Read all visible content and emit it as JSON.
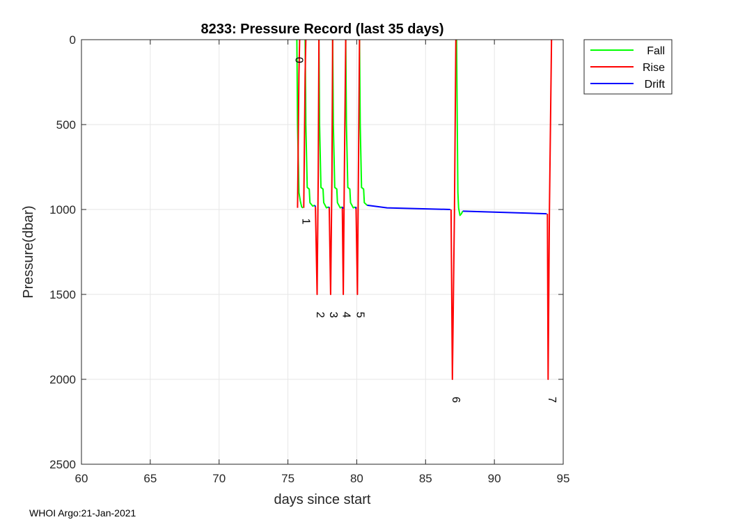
{
  "chart_data": {
    "type": "line",
    "title": "8233: Pressure Record (last 35 days)",
    "xlabel": "days since start",
    "ylabel": "Pressure(dbar)",
    "xlim": [
      60,
      95
    ],
    "ylim": [
      0,
      2500
    ],
    "y_reversed": true,
    "x_ticks": [
      60,
      65,
      70,
      75,
      80,
      85,
      90,
      95
    ],
    "y_ticks": [
      0,
      500,
      1000,
      1500,
      2000,
      2500
    ],
    "grid": true,
    "legend_position": "outside-top-right",
    "series": [
      {
        "name": "Fall",
        "color": "#00ff00",
        "segments": [
          [
            [
              75.65,
              0
            ],
            [
              75.7,
              500
            ],
            [
              75.8,
              900
            ],
            [
              75.9,
              950
            ],
            [
              76.0,
              985
            ],
            [
              76.1,
              990
            ]
          ],
          [
            [
              76.25,
              0
            ],
            [
              76.3,
              500
            ],
            [
              76.4,
              870
            ],
            [
              76.55,
              880
            ],
            [
              76.6,
              960
            ],
            [
              76.8,
              980
            ],
            [
              76.95,
              975
            ]
          ],
          [
            [
              77.25,
              0
            ],
            [
              77.3,
              500
            ],
            [
              77.4,
              870
            ],
            [
              77.55,
              880
            ],
            [
              77.6,
              960
            ],
            [
              77.8,
              990
            ],
            [
              77.95,
              985
            ]
          ],
          [
            [
              78.25,
              0
            ],
            [
              78.3,
              500
            ],
            [
              78.4,
              870
            ],
            [
              78.55,
              880
            ],
            [
              78.6,
              960
            ],
            [
              78.8,
              990
            ],
            [
              78.95,
              985
            ]
          ],
          [
            [
              79.2,
              0
            ],
            [
              79.25,
              500
            ],
            [
              79.35,
              870
            ],
            [
              79.5,
              880
            ],
            [
              79.55,
              960
            ],
            [
              79.75,
              990
            ],
            [
              79.9,
              985
            ]
          ],
          [
            [
              80.2,
              0
            ],
            [
              80.25,
              500
            ],
            [
              80.35,
              870
            ],
            [
              80.5,
              880
            ],
            [
              80.55,
              960
            ],
            [
              80.75,
              975
            ]
          ],
          [
            [
              87.25,
              0
            ],
            [
              87.3,
              500
            ],
            [
              87.35,
              900
            ],
            [
              87.4,
              990
            ],
            [
              87.5,
              1035
            ],
            [
              87.6,
              1025
            ],
            [
              87.7,
              1010
            ]
          ]
        ]
      },
      {
        "name": "Rise",
        "color": "#ff0000",
        "segments": [
          [
            [
              75.7,
              990
            ],
            [
              75.75,
              600
            ],
            [
              75.8,
              200
            ],
            [
              75.85,
              0
            ]
          ],
          [
            [
              76.15,
              990
            ],
            [
              76.2,
              600
            ],
            [
              76.25,
              200
            ],
            [
              76.3,
              0
            ]
          ],
          [
            [
              77.0,
              985
            ],
            [
              77.12,
              1500
            ],
            [
              77.2,
              800
            ],
            [
              77.25,
              0
            ]
          ],
          [
            [
              78.0,
              985
            ],
            [
              78.1,
              1500
            ],
            [
              78.2,
              800
            ],
            [
              78.25,
              0
            ]
          ],
          [
            [
              78.95,
              985
            ],
            [
              79.02,
              1500
            ],
            [
              79.1,
              800
            ],
            [
              79.2,
              0
            ]
          ],
          [
            [
              79.95,
              985
            ],
            [
              80.05,
              1500
            ],
            [
              80.12,
              800
            ],
            [
              80.2,
              0
            ]
          ],
          [
            [
              86.85,
              1000
            ],
            [
              86.95,
              2000
            ],
            [
              87.1,
              1000
            ],
            [
              87.2,
              0
            ]
          ],
          [
            [
              93.85,
              1025
            ],
            [
              93.9,
              2000
            ],
            [
              94.0,
              1000
            ],
            [
              94.15,
              0
            ]
          ]
        ]
      },
      {
        "name": "Drift",
        "color": "#0000ff",
        "segments": [
          [
            [
              76.95,
              975
            ],
            [
              77.0,
              985
            ]
          ],
          [
            [
              77.95,
              985
            ],
            [
              78.0,
              990
            ]
          ],
          [
            [
              78.95,
              985
            ],
            [
              79.0,
              995
            ]
          ],
          [
            [
              79.9,
              985
            ],
            [
              79.95,
              995
            ]
          ],
          [
            [
              80.75,
              975
            ],
            [
              82.2,
              990
            ],
            [
              86.8,
              1000
            ]
          ],
          [
            [
              87.7,
              1010
            ],
            [
              93.8,
              1025
            ]
          ]
        ]
      }
    ],
    "annotations": [
      {
        "text": "0",
        "x": 75.55,
        "y": 120
      },
      {
        "text": "1",
        "x": 76.05,
        "y": 1070
      },
      {
        "text": "2",
        "x": 77.1,
        "y": 1620
      },
      {
        "text": "3",
        "x": 78.05,
        "y": 1620
      },
      {
        "text": "4",
        "x": 79.0,
        "y": 1620
      },
      {
        "text": "5",
        "x": 80.0,
        "y": 1620
      },
      {
        "text": "6",
        "x": 86.95,
        "y": 2120
      },
      {
        "text": "7",
        "x": 93.95,
        "y": 2120
      }
    ]
  },
  "footer": {
    "text": "WHOI Argo:21-Jan-2021"
  }
}
